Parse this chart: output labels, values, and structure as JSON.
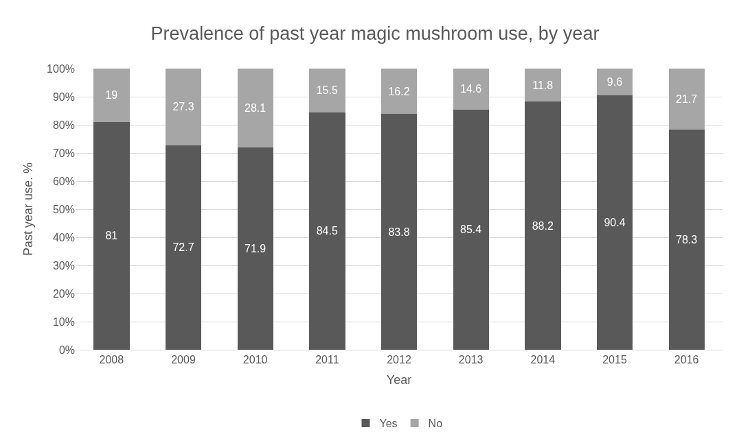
{
  "chart_data": {
    "type": "bar",
    "title": "Prevalence of past year magic mushroom use, by year",
    "xlabel": "Year",
    "ylabel": "Past year use. %",
    "categories": [
      "2008",
      "2009",
      "2010",
      "2011",
      "2012",
      "2013",
      "2014",
      "2015",
      "2016"
    ],
    "series": [
      {
        "name": "Yes",
        "color": "#595959",
        "values": [
          81,
          72.7,
          71.9,
          84.5,
          83.8,
          85.4,
          88.2,
          90.4,
          78.3
        ]
      },
      {
        "name": "No",
        "color": "#a6a6a6",
        "values": [
          19,
          27.3,
          28.1,
          15.5,
          16.2,
          14.6,
          11.8,
          9.6,
          21.7
        ]
      }
    ],
    "stacked": true,
    "data_labels": true,
    "ylim": [
      0,
      100
    ],
    "yticks": [
      {
        "value": 0,
        "label": "0%"
      },
      {
        "value": 10,
        "label": "10%"
      },
      {
        "value": 20,
        "label": "20%"
      },
      {
        "value": 30,
        "label": "30%"
      },
      {
        "value": 40,
        "label": "40%"
      },
      {
        "value": 50,
        "label": "50%"
      },
      {
        "value": 60,
        "label": "60%"
      },
      {
        "value": 70,
        "label": "70%"
      },
      {
        "value": 80,
        "label": "80%"
      },
      {
        "value": 90,
        "label": "90%"
      },
      {
        "value": 100,
        "label": "100%"
      }
    ],
    "grid": "y",
    "legend": "bottom"
  }
}
